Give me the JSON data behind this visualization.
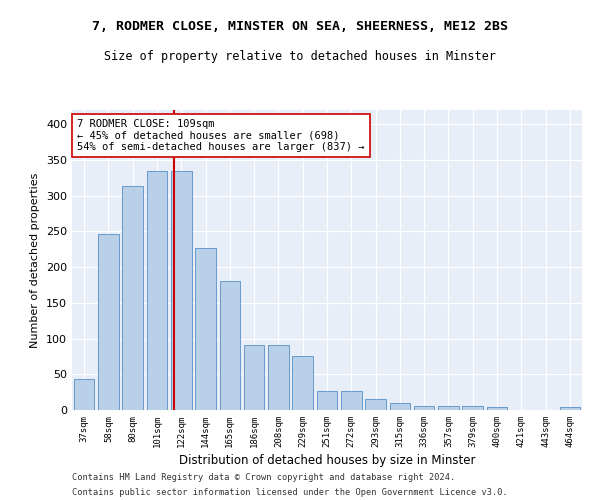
{
  "title1": "7, RODMER CLOSE, MINSTER ON SEA, SHEERNESS, ME12 2BS",
  "title2": "Size of property relative to detached houses in Minster",
  "xlabel": "Distribution of detached houses by size in Minster",
  "ylabel": "Number of detached properties",
  "categories": [
    "37sqm",
    "58sqm",
    "80sqm",
    "101sqm",
    "122sqm",
    "144sqm",
    "165sqm",
    "186sqm",
    "208sqm",
    "229sqm",
    "251sqm",
    "272sqm",
    "293sqm",
    "315sqm",
    "336sqm",
    "357sqm",
    "379sqm",
    "400sqm",
    "421sqm",
    "443sqm",
    "464sqm"
  ],
  "values": [
    44,
    246,
    313,
    335,
    335,
    227,
    180,
    91,
    91,
    75,
    26,
    26,
    16,
    10,
    5,
    5,
    5,
    4,
    0,
    0,
    4
  ],
  "bar_color": "#b8d0e8",
  "bar_edge_color": "#6699cc",
  "vline_pos": 3.7,
  "vline_color": "#cc0000",
  "annotation_text": "7 RODMER CLOSE: 109sqm\n← 45% of detached houses are smaller (698)\n54% of semi-detached houses are larger (837) →",
  "annotation_box_color": "#ffffff",
  "annotation_box_edge": "#cc0000",
  "footnote1": "Contains HM Land Registry data © Crown copyright and database right 2024.",
  "footnote2": "Contains public sector information licensed under the Open Government Licence v3.0.",
  "background_color": "#e8eef8",
  "ylim": [
    0,
    420
  ],
  "yticks": [
    0,
    50,
    100,
    150,
    200,
    250,
    300,
    350,
    400
  ]
}
